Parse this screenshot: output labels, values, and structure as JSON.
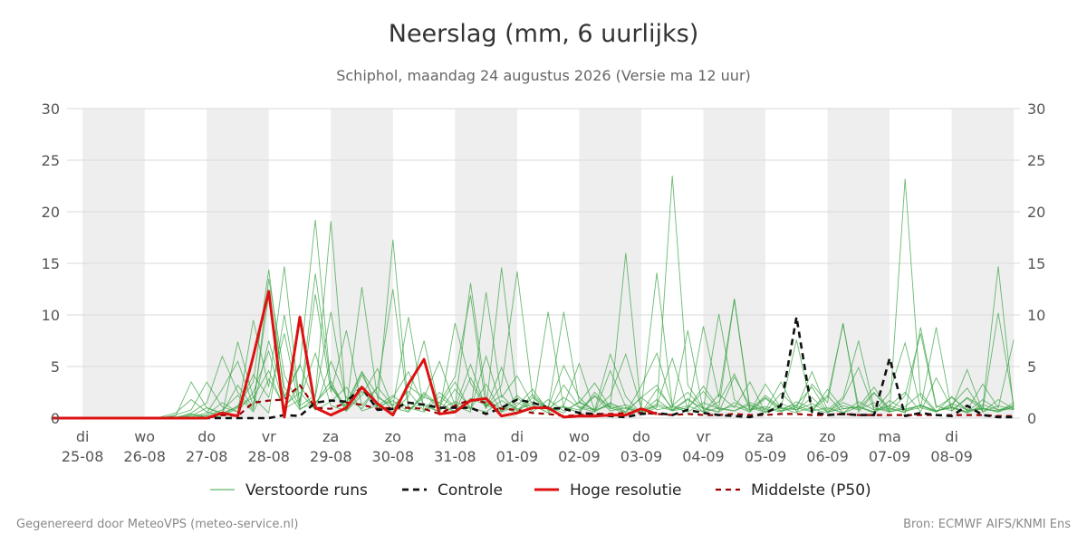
{
  "header": {
    "title": "Neerslag (mm, 6 uurlijks)",
    "subtitle": "Schiphol, maandag 24 augustus 2026 (Versie ma 12 uur)"
  },
  "footer": {
    "left": "Gegenereerd door MeteoVPS (meteo-service.nl)",
    "right": "Bron: ECMWF AIFS/KNMI Ens"
  },
  "chart_data": {
    "type": "line",
    "title": "Neerslag (mm, 6 uurlijks)",
    "subtitle": "Schiphol, maandag 24 augustus 2026 (Versie ma 12 uur)",
    "x_unit": "day",
    "x_start_label": "ma 24-08 12 uur",
    "x_step_days": 0.25,
    "xlim": [
      -0.25,
      15.1
    ],
    "ylim": [
      0,
      30
    ],
    "yticks": [
      0,
      5,
      10,
      15,
      20,
      25,
      30
    ],
    "grid": true,
    "weekend_shading": true,
    "x_ticks": [
      {
        "day": "di",
        "date": "25-08"
      },
      {
        "day": "wo",
        "date": "26-08"
      },
      {
        "day": "do",
        "date": "27-08"
      },
      {
        "day": "vr",
        "date": "28-08"
      },
      {
        "day": "za",
        "date": "29-08"
      },
      {
        "day": "zo",
        "date": "30-08"
      },
      {
        "day": "ma",
        "date": "31-08"
      },
      {
        "day": "di",
        "date": "01-09"
      },
      {
        "day": "wo",
        "date": "02-09"
      },
      {
        "day": "do",
        "date": "03-09"
      },
      {
        "day": "vr",
        "date": "04-09"
      },
      {
        "day": "za",
        "date": "05-09"
      },
      {
        "day": "zo",
        "date": "06-09"
      },
      {
        "day": "ma",
        "date": "07-09"
      },
      {
        "day": "di",
        "date": "08-09"
      }
    ],
    "legend_position": "bottom",
    "series": [
      {
        "name": "Controle",
        "color": "#111111",
        "style": "dashed",
        "values": [
          0,
          0,
          0,
          0,
          0,
          0,
          0,
          0,
          0,
          0,
          0,
          0,
          0,
          0,
          0,
          0.3,
          0.2,
          1.5,
          1.7,
          1.6,
          3.0,
          0.8,
          0.9,
          1.5,
          1.3,
          1.0,
          1.0,
          1.0,
          0.4,
          1.0,
          1.8,
          1.5,
          1.0,
          0.9,
          0.5,
          0.4,
          0.2,
          0.1,
          0.4,
          0.5,
          0.3,
          0.8,
          0.5,
          0.3,
          0.2,
          0.1,
          0.5,
          1.2,
          9.8,
          0.6,
          0.3,
          0.4,
          0.3,
          0.3,
          5.8,
          0.2,
          0.5,
          0.3,
          0.2,
          1.2,
          0.3,
          0.1,
          0.1
        ]
      },
      {
        "name": "Hoge resolutie",
        "color": "#dd1111",
        "style": "solid",
        "values": [
          0,
          0,
          0,
          0,
          0,
          0,
          0,
          0,
          0,
          0,
          0,
          0.5,
          0.2,
          6.0,
          12.3,
          0.1,
          9.8,
          1.0,
          0.3,
          1.0,
          3.0,
          1.4,
          0.3,
          3.3,
          5.7,
          0.4,
          0.6,
          1.7,
          1.9,
          0.2,
          0.5,
          1.0,
          1.0,
          0.1,
          0.2,
          0.2,
          0.3,
          0.3,
          0.9,
          0.4
        ]
      },
      {
        "name": "Middelste (P50)",
        "color": "#990000",
        "style": "dashed",
        "values": [
          0,
          0,
          0,
          0,
          0,
          0,
          0,
          0,
          0,
          0,
          0,
          0.3,
          0.2,
          1.5,
          1.7,
          1.8,
          3.2,
          1.0,
          0.9,
          1.5,
          1.3,
          0.9,
          1.0,
          1.0,
          0.9,
          0.4,
          1.2,
          1.8,
          1.5,
          0.9,
          0.8,
          0.5,
          0.4,
          0.2,
          0.3,
          0.4,
          0.4,
          0.5,
          0.5,
          0.4,
          0.3,
          0.4,
          0.3,
          0.3,
          0.4,
          0.3,
          0.3,
          0.4,
          0.4,
          0.3,
          0.3,
          0.4,
          0.3,
          0.3,
          0.3,
          0.3,
          0.3,
          0.3,
          0.3,
          0.3,
          0.3,
          0.2,
          0.2
        ]
      }
    ],
    "ensemble": {
      "name": "Verstoorde runs",
      "color": "#3aa343",
      "members": [
        [
          0,
          0,
          0,
          0,
          0,
          0,
          0,
          0.1,
          0.5,
          1.8,
          0.6,
          0.3,
          1.2,
          3.5,
          14.4,
          2.1,
          5.0,
          19.2,
          3.0,
          1.1,
          4.5,
          2.2,
          0.8,
          3.1,
          2.0,
          5.5,
          1.2,
          0.6,
          12.2,
          2.0,
          4.1,
          1.3,
          0.5,
          3.2,
          1.1,
          0.8,
          6.2,
          2.1,
          0.4,
          1.0,
          23.5,
          3.2,
          1.0,
          0.6,
          4.0,
          1.2,
          0.8,
          3.5,
          0.6,
          1.0,
          2.2,
          0.5,
          1.1,
          3.0,
          0.7,
          23.2,
          2.1,
          0.6,
          1.3,
          2.9,
          0.6,
          1.8,
          0.9
        ],
        [
          0,
          0,
          0,
          0,
          0,
          0,
          0,
          0,
          0.3,
          0.8,
          3.5,
          1.1,
          0.6,
          9.5,
          3.0,
          14.7,
          1.2,
          2.2,
          19.1,
          0.9,
          3.1,
          1.2,
          17.3,
          1.0,
          0.6,
          2.1,
          1.0,
          5.2,
          0.9,
          14.6,
          2.0,
          0.6,
          1.8,
          0.7,
          1.5,
          3.4,
          1.0,
          16.0,
          0.7,
          1.2,
          5.8,
          0.9,
          3.1,
          1.0,
          11.5,
          0.7,
          2.2,
          1.0,
          0.5,
          3.3,
          1.5,
          9.2,
          0.6,
          2.4,
          1.0,
          0.5,
          8.8,
          1.2,
          0.7,
          2.0,
          1.1,
          14.7,
          0.8
        ],
        [
          0,
          0,
          0,
          0,
          0,
          0,
          0,
          0,
          0,
          0.5,
          1.5,
          6.0,
          2.5,
          0.8,
          13.5,
          4.2,
          1.0,
          12.0,
          2.5,
          8.5,
          1.2,
          3.0,
          12.5,
          0.8,
          2.0,
          1.5,
          4.0,
          11.9,
          1.0,
          3.2,
          14.2,
          2.1,
          0.9,
          10.3,
          1.5,
          0.8,
          2.2,
          6.2,
          1.0,
          14.1,
          1.2,
          2.5,
          0.9,
          10.1,
          1.8,
          0.6,
          3.3,
          1.0,
          7.6,
          0.8,
          2.0,
          9.1,
          1.1,
          0.6,
          2.5,
          7.3,
          1.0,
          8.8,
          0.7,
          1.9,
          0.8,
          10.2,
          1.2
        ],
        [
          0,
          0,
          0,
          0,
          0,
          0,
          0,
          0,
          0.2,
          3.5,
          1.0,
          0.4,
          7.4,
          2.0,
          0.5,
          10.0,
          1.5,
          14.0,
          3.2,
          1.0,
          12.7,
          2.0,
          1.2,
          9.8,
          0.8,
          2.5,
          1.1,
          13.1,
          2.0,
          0.7,
          1.5,
          0.8,
          10.3,
          1.0,
          0.6,
          2.2,
          1.0,
          0.5,
          3.1,
          6.3,
          1.2,
          0.8,
          8.9,
          2.0,
          11.6,
          1.0,
          0.6,
          2.4,
          1.0,
          4.5,
          0.8,
          2.0,
          7.5,
          1.0,
          0.6,
          2.2,
          8.2,
          1.0,
          2.0,
          0.8,
          3.3,
          1.0,
          7.6
        ],
        [
          0,
          0,
          0,
          0,
          0,
          0,
          0,
          0,
          0,
          0.1,
          0.5,
          2.8,
          5.5,
          1.2,
          12.0,
          3.0,
          0.8,
          2.0,
          10.3,
          1.5,
          4.5,
          0.9,
          2.0,
          4.5,
          1.2,
          0.6,
          9.2,
          3.4,
          1.0,
          4.9,
          0.7,
          2.3,
          1.0,
          5.1,
          2.0,
          0.6,
          4.6,
          1.1,
          0.5,
          2.8,
          1.0,
          8.5,
          0.7,
          1.6,
          4.3,
          0.8,
          2.0,
          0.9,
          1.3,
          3.0,
          0.6,
          1.8,
          4.9,
          0.8,
          1.2,
          2.5,
          0.6,
          3.9,
          1.0,
          4.7,
          0.6,
          1.2,
          0.8
        ],
        [
          0,
          0,
          0,
          0,
          0,
          0,
          0,
          0,
          0,
          0.2,
          1.0,
          0.5,
          3.2,
          1.0,
          7.5,
          2.0,
          5.2,
          1.4,
          3.6,
          0.7,
          2.2,
          4.8,
          1.0,
          0.6,
          2.5,
          1.2,
          3.5,
          0.8,
          6.0,
          1.1,
          0.5,
          2.0,
          0.8,
          1.2,
          5.3,
          0.7,
          1.5,
          0.6,
          2.0,
          3.2,
          0.8,
          1.2,
          0.6,
          2.3,
          1.0,
          3.5,
          0.5,
          1.4,
          0.8,
          2.0,
          0.6,
          1.5,
          0.9,
          2.5,
          0.6,
          1.1,
          2.4,
          0.7,
          1.0,
          0.6,
          1.8,
          0.8,
          1.2
        ],
        [
          0,
          0,
          0,
          0,
          0,
          0,
          0,
          0,
          0,
          0,
          0.3,
          1.5,
          0.6,
          2.5,
          6.5,
          1.0,
          3.2,
          0.8,
          5.5,
          2.0,
          0.9,
          3.0,
          1.2,
          2.6,
          0.7,
          1.5,
          0.6,
          3.9,
          1.1,
          2.2,
          0.7,
          1.6,
          0.9,
          2.0,
          1.0,
          0.6,
          1.4,
          0.9,
          0.5,
          1.2,
          0.7,
          1.8,
          0.9,
          0.6,
          1.5,
          0.8,
          1.1,
          0.7,
          1.6,
          0.9,
          0.5,
          1.2,
          0.8,
          1.5,
          0.6,
          0.9,
          1.2,
          0.7,
          1.0,
          0.5,
          1.3,
          0.8,
          0.9
        ],
        [
          0,
          0,
          0,
          0,
          0,
          0,
          0,
          0,
          0,
          0,
          0,
          0.2,
          1.0,
          4.2,
          2.0,
          8.2,
          0.9,
          1.5,
          3.1,
          0.7,
          4.2,
          1.3,
          0.6,
          2.1,
          7.5,
          0.8,
          1.6,
          0.9,
          3.3,
          0.6,
          1.2,
          2.8,
          0.7,
          1.1,
          0.5,
          2.5,
          0.9,
          1.3,
          0.6,
          1.8,
          0.7,
          1.0,
          2.6,
          0.8,
          1.2,
          0.6,
          1.9,
          0.7,
          1.0,
          0.6,
          2.8,
          0.9,
          1.1,
          0.5,
          1.7,
          0.8,
          1.2,
          0.6,
          2.1,
          0.7,
          1.0,
          0.6,
          1.5
        ],
        [
          0,
          0,
          0,
          0,
          0,
          0,
          0,
          0,
          0.1,
          0.4,
          0.2,
          0.8,
          2.2,
          0.6,
          3.8,
          1.2,
          2.5,
          0.8,
          1.6,
          3.0,
          0.7,
          1.2,
          2.2,
          0.9,
          1.4,
          0.6,
          2.8,
          1.0,
          0.6,
          1.7,
          0.9,
          1.3,
          0.5,
          1.1,
          0.8,
          2.1,
          0.7,
          1.0,
          0.6,
          1.4,
          0.8,
          1.9,
          0.6,
          1.0,
          0.7,
          1.5,
          0.9,
          0.6,
          1.2,
          0.7,
          1.0,
          0.5,
          1.6,
          0.8,
          0.9,
          0.6,
          1.3,
          0.7,
          1.1,
          0.6,
          0.9,
          0.7,
          1.2
        ],
        [
          0,
          0,
          0,
          0,
          0,
          0,
          0,
          0,
          0,
          0.3,
          0.1,
          0.5,
          1.1,
          2.0,
          4.6,
          0.9,
          1.8,
          6.3,
          1.2,
          0.7,
          2.6,
          1.1,
          1.7,
          0.6,
          2.3,
          1.0,
          0.7,
          1.9,
          1.3,
          0.6,
          2.2,
          0.9,
          1.1,
          0.5,
          1.6,
          0.8,
          1.2,
          0.6,
          2.0,
          0.8,
          1.1,
          0.6,
          1.5,
          0.9,
          0.7,
          1.3,
          0.6,
          1.0,
          0.8,
          1.4,
          0.6,
          0.9,
          1.1,
          0.6,
          1.2,
          0.7,
          1.0,
          0.6,
          1.4,
          0.8,
          0.9,
          0.6,
          1.1
        ]
      ]
    }
  },
  "legend": {
    "items": [
      {
        "label": "Verstoorde runs"
      },
      {
        "label": "Controle"
      },
      {
        "label": "Hoge resolutie"
      },
      {
        "label": "Middelste (P50)"
      }
    ]
  }
}
